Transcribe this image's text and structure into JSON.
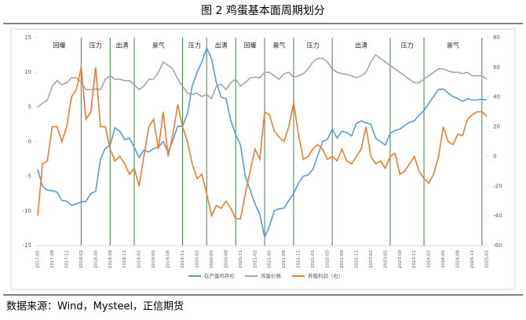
{
  "chart_data": {
    "type": "line",
    "title": "图 2 鸡蛋基本面周期划分",
    "source": "数据来源：Wind，Mysteel，正信期货",
    "categories": [
      "2017-05",
      null,
      null,
      "2017-08",
      null,
      null,
      "2017-11",
      null,
      null,
      "2018-02",
      null,
      null,
      "2018-05",
      null,
      null,
      "2018-08",
      null,
      null,
      "2018-11",
      null,
      null,
      "2019-02",
      null,
      null,
      "2019-05",
      null,
      null,
      "2019-08",
      null,
      null,
      "2019-11",
      null,
      null,
      "2020-02",
      null,
      null,
      "2020-05",
      null,
      null,
      "2020-08",
      null,
      null,
      "2020-11",
      null,
      null,
      "2021-02",
      null,
      null,
      "2021-05",
      null,
      null,
      "2021-08",
      null,
      null,
      "2021-11",
      null,
      null,
      "2022-02",
      null,
      null,
      "2022-05",
      null,
      null,
      "2022-08",
      null,
      null,
      "2022-11",
      null,
      null,
      "2023-02",
      null,
      null,
      "2023-05",
      null,
      null,
      "2023-08",
      null,
      null,
      "2023-11",
      null,
      null,
      "2024-02",
      null,
      null,
      "2024-05",
      null,
      null,
      "2024-08",
      null,
      null,
      "2024-11",
      null,
      null,
      "2025-02"
    ],
    "series": [
      {
        "name": "在产蛋鸡存栏",
        "color": "#5b9bd5",
        "axis": "y",
        "values": [
          -4,
          -6.5,
          -7,
          -7.1,
          -7.3,
          -8.5,
          -8.6,
          -9.2,
          -9,
          -8.7,
          -8.6,
          -7.5,
          -7.2,
          -2.5,
          -1,
          -0.5,
          2,
          1.5,
          0.3,
          0.5,
          -0.8,
          -2.3,
          -1.2,
          -1.5,
          -1,
          -0.8,
          0,
          -1.5,
          0.2,
          2.2,
          2.2,
          4,
          8,
          10,
          11.5,
          13.5,
          12,
          8.5,
          6.4,
          6.2,
          3,
          1,
          -0.5,
          -5,
          -7,
          -9,
          -10.5,
          -13.8,
          -12.2,
          -10,
          -9.7,
          -9.6,
          -8.5,
          -7.5,
          -6,
          -5,
          -4.8,
          -4,
          -2,
          0,
          0.3,
          1.8,
          0.5,
          1.5,
          1.3,
          0.8,
          2.6,
          3,
          2.7,
          2.5,
          0.5,
          0,
          -0.5,
          1.2,
          1.6,
          1.8,
          2.3,
          2.8,
          3,
          3.8,
          4.5,
          5.5,
          6.5,
          7.5,
          7.6,
          7,
          6.5,
          6.2,
          5.8,
          6.2,
          6,
          6,
          6.1,
          6
        ]
      },
      {
        "name": "鸡蛋价格",
        "color": "#a5a5a5",
        "axis": "y",
        "values": [
          5,
          5.5,
          6,
          8,
          8.8,
          8.2,
          8.5,
          9.2,
          9.2,
          8.5,
          7.5,
          7.5,
          7.6,
          7.5,
          9,
          9.5,
          9,
          9,
          8.8,
          8.8,
          8.2,
          7.5,
          8,
          9,
          9,
          10,
          11.5,
          11,
          10.5,
          9,
          8,
          7,
          6.8,
          7,
          6.5,
          6.8,
          6.2,
          8,
          8.3,
          7.5,
          8.5,
          9,
          8,
          8.5,
          9.2,
          9.3,
          9.2,
          10,
          10,
          9.5,
          9,
          9.8,
          10,
          9.3,
          9.5,
          9.8,
          10.5,
          11.5,
          12,
          12,
          11.5,
          10.5,
          10,
          9.8,
          9.7,
          9.5,
          9.2,
          9.5,
          10,
          11.5,
          12.5,
          12,
          11.5,
          11,
          10.5,
          10,
          9.5,
          9,
          8.5,
          8.5,
          9,
          9.5,
          10,
          10.5,
          10.5,
          10.2,
          10,
          10,
          9.8,
          10,
          9.5,
          9.5,
          9.5,
          9
        ]
      },
      {
        "name": "养殖利润（右）",
        "color": "#ed7d31",
        "axis": "y2",
        "values": [
          -40,
          -5,
          -3,
          20,
          20,
          10,
          20,
          40,
          45,
          60,
          25,
          30,
          60,
          20,
          20,
          5,
          -3,
          0,
          -5,
          -12,
          -8,
          -20,
          0,
          20,
          25,
          5,
          30,
          0,
          15,
          35,
          20,
          10,
          -5,
          -15,
          -12,
          -25,
          -40,
          -33,
          -35,
          -30,
          -35,
          -42,
          -42,
          -25,
          -10,
          5,
          -2,
          30,
          28,
          17,
          13,
          10,
          20,
          36,
          15,
          -2,
          0,
          5,
          8,
          5,
          -2,
          0,
          -3,
          5,
          -3,
          -5,
          0,
          5,
          20,
          0,
          -5,
          -3,
          -8,
          0,
          2,
          -12,
          -10,
          -5,
          0,
          -10,
          -15,
          -18,
          -12,
          0,
          20,
          10,
          8,
          15,
          14,
          25,
          28,
          30,
          30,
          27
        ]
      }
    ],
    "ylim": [
      -15,
      15
    ],
    "yticks": [
      -15,
      -10,
      -5,
      0,
      5,
      10,
      15
    ],
    "y2lim": [
      -60,
      80
    ],
    "y2ticks": [
      -60,
      -40,
      -20,
      0,
      20,
      40,
      60,
      80
    ],
    "legend": "bottom",
    "phase_color": "#3a8a3a",
    "phases": [
      {
        "label": "回暖",
        "start": "2017-05",
        "end": "2018-02"
      },
      {
        "label": "压力",
        "start": "2018-02",
        "end": "2018-08"
      },
      {
        "label": "出清",
        "start": "2018-08",
        "end": "2019-01"
      },
      {
        "label": "景气",
        "start": "2019-01",
        "end": "2019-11"
      },
      {
        "label": "压力",
        "start": "2019-11",
        "end": "2020-04"
      },
      {
        "label": "出清",
        "start": "2020-04",
        "end": "2020-10"
      },
      {
        "label": "回暖",
        "start": "2020-10",
        "end": "2021-04"
      },
      {
        "label": "景气",
        "start": "2021-04",
        "end": "2021-10"
      },
      {
        "label": "压力",
        "start": "2021-10",
        "end": "2022-06"
      },
      {
        "label": "出清",
        "start": "2022-06",
        "end": "2023-06"
      },
      {
        "label": "压力",
        "start": "2023-06",
        "end": "2024-01"
      },
      {
        "label": "景气",
        "start": "2024-01",
        "end": "2025-01"
      }
    ]
  }
}
